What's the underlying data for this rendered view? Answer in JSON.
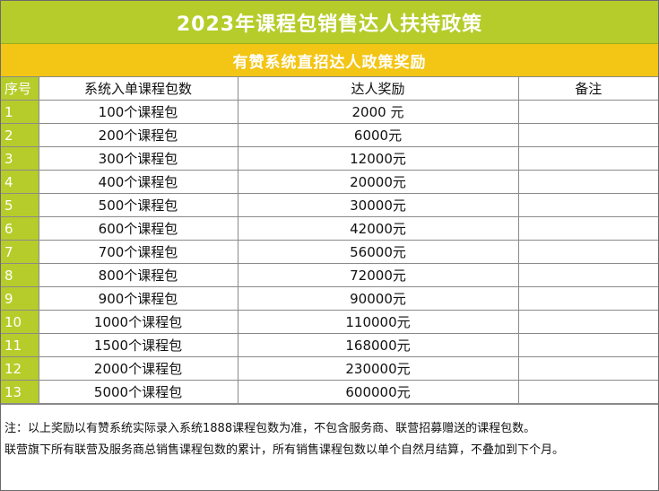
{
  "title": "2023年课程包销售达人扶持政策",
  "subtitle": "有赞系统直招达人政策奖励",
  "colors": {
    "title_bg": "#b6cc2a",
    "subtitle_bg": "#f3c515",
    "index_bg": "#b6cc2a",
    "border": "#8a8a8a"
  },
  "table": {
    "headers": {
      "index": "序号",
      "count": "系统入单课程包数",
      "reward": "达人奖励",
      "note": "备注"
    },
    "rows": [
      {
        "index": "1",
        "count": "100个课程包",
        "reward": "2000 元",
        "note": ""
      },
      {
        "index": "2",
        "count": "200个课程包",
        "reward": "6000元",
        "note": ""
      },
      {
        "index": "3",
        "count": "300个课程包",
        "reward": "12000元",
        "note": ""
      },
      {
        "index": "4",
        "count": "400个课程包",
        "reward": "20000元",
        "note": ""
      },
      {
        "index": "5",
        "count": "500个课程包",
        "reward": "30000元",
        "note": ""
      },
      {
        "index": "6",
        "count": "600个课程包",
        "reward": "42000元",
        "note": ""
      },
      {
        "index": "7",
        "count": "700个课程包",
        "reward": "56000元",
        "note": ""
      },
      {
        "index": "8",
        "count": "800个课程包",
        "reward": "72000元",
        "note": ""
      },
      {
        "index": "9",
        "count": "900个课程包",
        "reward": "90000元",
        "note": ""
      },
      {
        "index": "10",
        "count": "1000个课程包",
        "reward": "110000元",
        "note": ""
      },
      {
        "index": "11",
        "count": "1500个课程包",
        "reward": "168000元",
        "note": ""
      },
      {
        "index": "12",
        "count": "2000个课程包",
        "reward": "230000元",
        "note": ""
      },
      {
        "index": "13",
        "count": "5000个课程包",
        "reward": "600000元",
        "note": ""
      }
    ]
  },
  "footer": {
    "line1": "注：以上奖励以有赞系统实际录入系统1888课程包数为准，不包含服务商、联营招募赠送的课程包数。",
    "line2": "联营旗下所有联营及服务商总销售课程包数的累计，所有销售课程包数以单个自然月结算，不叠加到下个月。"
  }
}
